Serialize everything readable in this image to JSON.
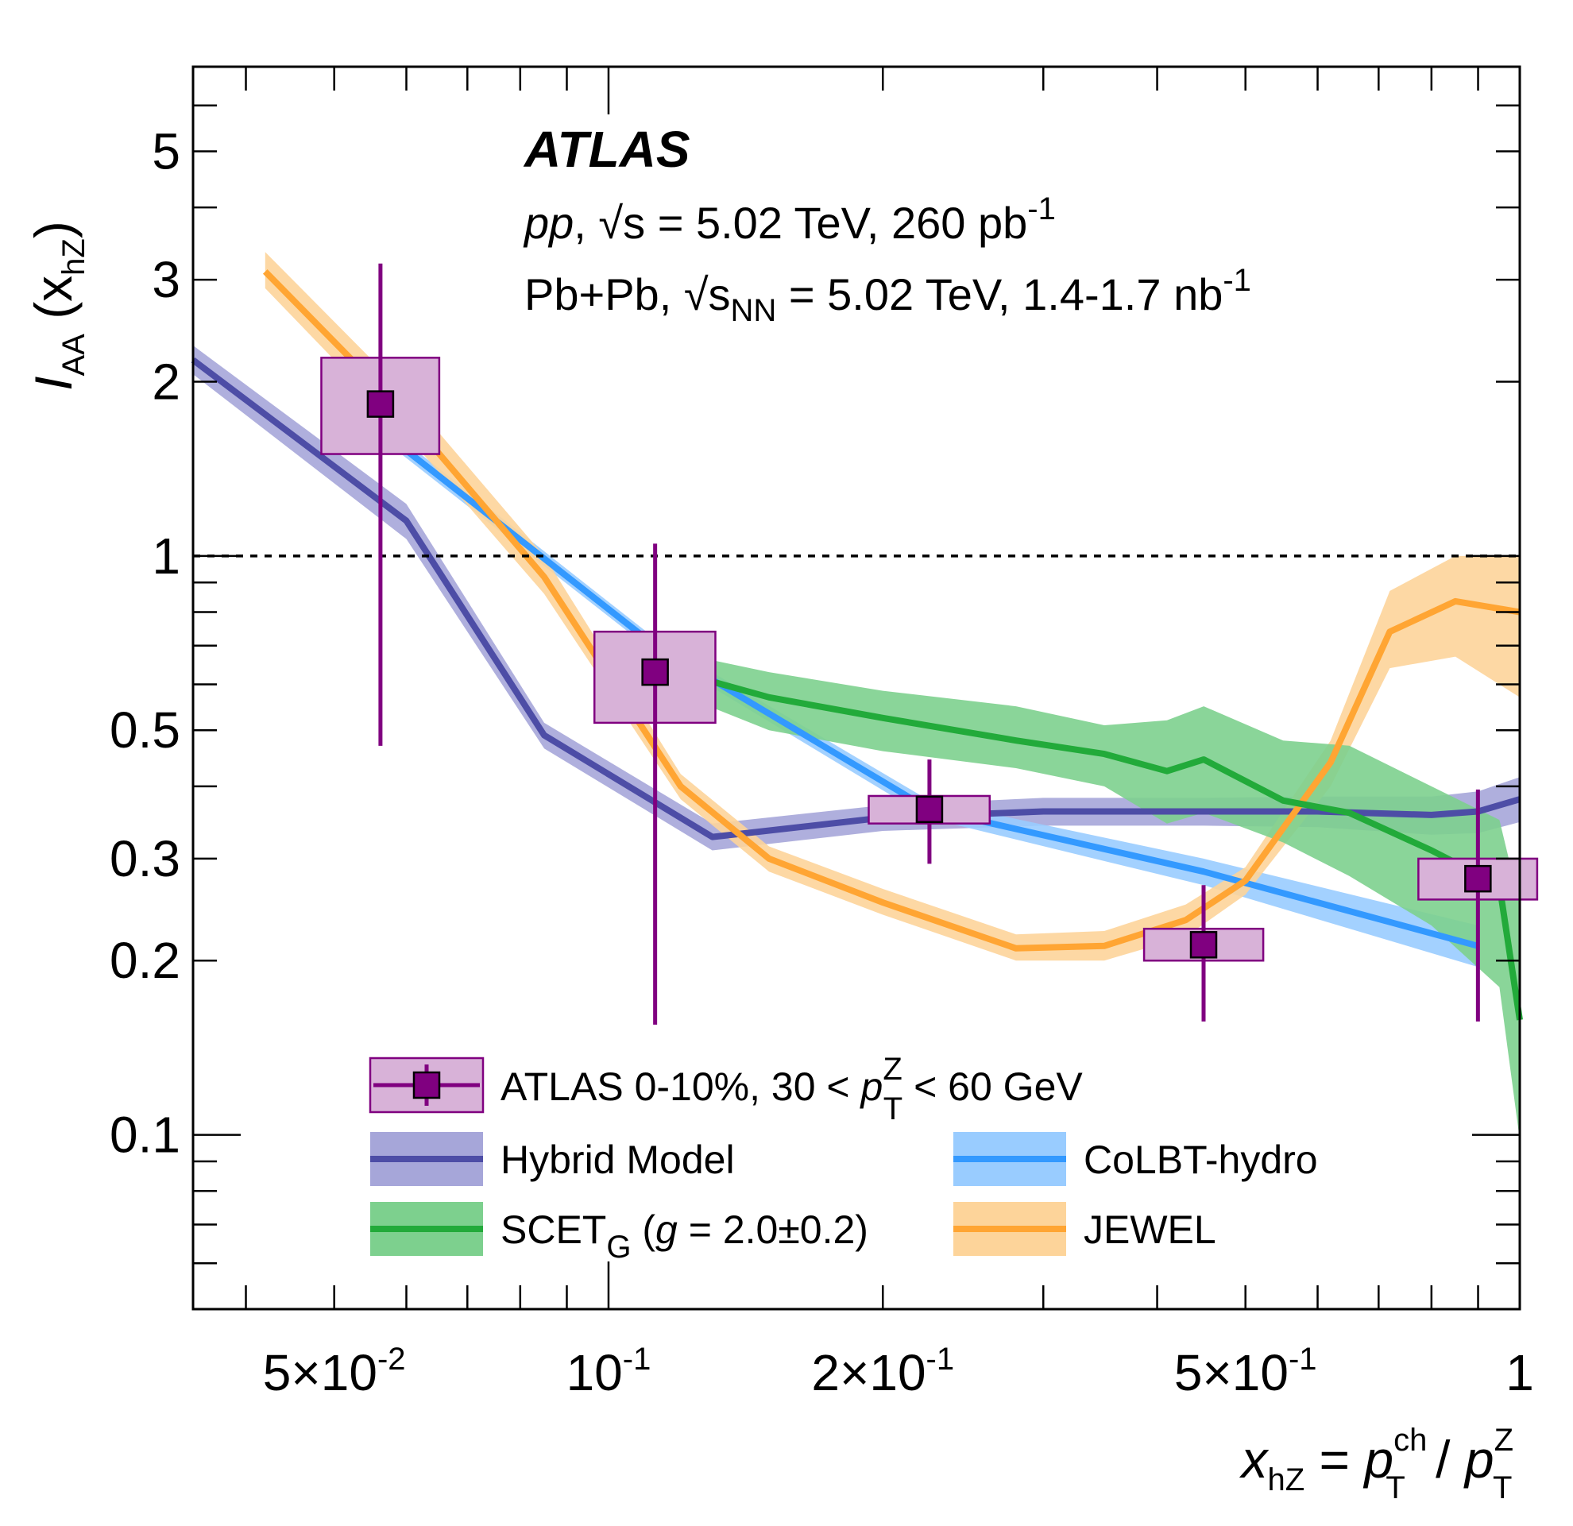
{
  "chart_data": {
    "type": "line",
    "title": "ATLAS",
    "subtitle_lines": [
      {
        "italic_prefix": "pp",
        "text": ", √s = 5.02 TeV, 260 pb",
        "superscript": "-1"
      },
      {
        "text_before": "Pb+Pb, √s",
        "subscript": "NN",
        "text_after": " = 5.02 TeV, 1.4-1.7 nb",
        "superscript": "-1"
      }
    ],
    "xlabel": {
      "parts": [
        "x",
        "hZ",
        " = ",
        "p",
        "ch",
        "T",
        " / ",
        "p",
        "Z",
        "T"
      ]
    },
    "ylabel": {
      "parts": [
        "I",
        "AA",
        " (x",
        "hZ",
        ")"
      ]
    },
    "xscale": "log",
    "yscale": "log",
    "xlim": [
      0.035,
      1.0
    ],
    "ylim": [
      0.05,
      7.0
    ],
    "x_tick_labels": [
      {
        "value": 0.05,
        "mantissa": "5×10",
        "exponent": "-2"
      },
      {
        "value": 0.1,
        "mantissa": "10",
        "exponent": "-1"
      },
      {
        "value": 0.2,
        "mantissa": "2×10",
        "exponent": "-1"
      },
      {
        "value": 0.5,
        "mantissa": "5×10",
        "exponent": "-1"
      },
      {
        "value": 1.0,
        "mantissa": "1",
        "exponent": ""
      }
    ],
    "y_tick_labels": [
      {
        "value": 5,
        "label": "5"
      },
      {
        "value": 3,
        "label": "3"
      },
      {
        "value": 2,
        "label": "2"
      },
      {
        "value": 1,
        "label": "1"
      },
      {
        "value": 0.5,
        "label": "0.5"
      },
      {
        "value": 0.3,
        "label": "0.3"
      },
      {
        "value": 0.2,
        "label": "0.2"
      },
      {
        "value": 0.1,
        "label": "0.1"
      }
    ],
    "reference_line": {
      "y": 1.0,
      "style": "dashed"
    },
    "data_points": {
      "name": "ATLAS 0-10%, 30 < p_T^Z < 60 GeV",
      "color": "#800080",
      "box_fill": "#d8b2d8",
      "points": [
        {
          "x": 0.0562,
          "y": 1.83,
          "stat_lo": 0.47,
          "stat_hi": 3.2,
          "sys_lo": 1.5,
          "sys_hi": 2.2,
          "x_lo": 0.0484,
          "x_hi": 0.0652
        },
        {
          "x": 0.1125,
          "y": 0.63,
          "stat_lo": 0.155,
          "stat_hi": 1.05,
          "sys_lo": 0.515,
          "sys_hi": 0.74,
          "x_lo": 0.0965,
          "x_hi": 0.131
        },
        {
          "x": 0.225,
          "y": 0.365,
          "stat_lo": 0.294,
          "stat_hi": 0.445,
          "sys_lo": 0.345,
          "sys_hi": 0.385,
          "x_lo": 0.193,
          "x_hi": 0.262
        },
        {
          "x": 0.4498,
          "y": 0.213,
          "stat_lo": 0.157,
          "stat_hi": 0.27,
          "sys_lo": 0.2,
          "sys_hi": 0.227,
          "x_lo": 0.387,
          "x_hi": 0.523
        },
        {
          "x": 0.8997,
          "y": 0.277,
          "stat_lo": 0.157,
          "stat_hi": 0.395,
          "sys_lo": 0.255,
          "sys_hi": 0.3,
          "x_lo": 0.774,
          "x_hi": 1.045
        }
      ]
    },
    "series": [
      {
        "name": "Hybrid Model",
        "line_color": "#4d4da6",
        "band_color": "#a6a6d9",
        "x": [
          0.035,
          0.06,
          0.085,
          0.13,
          0.2,
          0.3,
          0.45,
          0.6,
          0.8,
          0.9,
          1.0
        ],
        "y": [
          2.18,
          1.15,
          0.49,
          0.327,
          0.353,
          0.362,
          0.362,
          0.362,
          0.357,
          0.362,
          0.38
        ],
        "lo": [
          2.06,
          1.07,
          0.465,
          0.31,
          0.335,
          0.342,
          0.342,
          0.34,
          0.33,
          0.332,
          0.347
        ],
        "hi": [
          2.31,
          1.23,
          0.515,
          0.345,
          0.371,
          0.382,
          0.382,
          0.384,
          0.384,
          0.392,
          0.415
        ]
      },
      {
        "name": "CoLBT-hydro",
        "line_color": "#3399ff",
        "band_color": "#99ccff",
        "x": [
          0.0562,
          0.1125,
          0.225,
          0.4498,
          0.8997
        ],
        "y": [
          1.65,
          0.7,
          0.365,
          0.285,
          0.212
        ],
        "lo": [
          1.6,
          0.68,
          0.352,
          0.27,
          0.195
        ],
        "hi": [
          1.7,
          0.72,
          0.378,
          0.3,
          0.23
        ]
      },
      {
        "name": "SCET_G (g = 2.0±0.2)",
        "line_color": "#22aa3a",
        "band_color": "#7dd08e",
        "x": [
          0.1,
          0.15,
          0.2,
          0.28,
          0.35,
          0.41,
          0.45,
          0.55,
          0.65,
          0.8,
          0.95,
          1.06
        ],
        "y": [
          0.68,
          0.57,
          0.525,
          0.48,
          0.455,
          0.425,
          0.445,
          0.378,
          0.36,
          0.31,
          0.27,
          0.158
        ],
        "lo": [
          0.645,
          0.5,
          0.46,
          0.43,
          0.4,
          0.345,
          0.36,
          0.32,
          0.28,
          0.23,
          0.18,
          0.098
        ],
        "hi": [
          0.72,
          0.63,
          0.585,
          0.55,
          0.51,
          0.52,
          0.55,
          0.48,
          0.47,
          0.4,
          0.35,
          0.25
        ]
      },
      {
        "name": "JEWEL",
        "line_color": "#ffa533",
        "band_color": "#fdd49a",
        "x": [
          0.042,
          0.06,
          0.085,
          0.12,
          0.15,
          0.2,
          0.28,
          0.35,
          0.43,
          0.5,
          0.62,
          0.72,
          0.85,
          1.06
        ],
        "y": [
          3.1,
          1.75,
          0.92,
          0.4,
          0.3,
          0.252,
          0.21,
          0.212,
          0.235,
          0.275,
          0.44,
          0.74,
          0.835,
          0.8
        ],
        "lo": [
          2.9,
          1.62,
          0.86,
          0.38,
          0.285,
          0.24,
          0.2,
          0.2,
          0.22,
          0.26,
          0.4,
          0.64,
          0.67,
          0.57
        ],
        "hi": [
          3.35,
          1.9,
          1.0,
          0.42,
          0.315,
          0.266,
          0.222,
          0.225,
          0.25,
          0.29,
          0.48,
          0.87,
          1.0,
          1.0
        ]
      }
    ],
    "legend": {
      "placement": "bottom-left",
      "entries": [
        {
          "key": "atlas",
          "text_before": "ATLAS 0-10%, 30 < ",
          "p": "p",
          "sup": "Z",
          "sub": "T",
          "text_after": " < 60 GeV"
        },
        {
          "key": "hybrid",
          "text": "Hybrid Model"
        },
        {
          "key": "colbt",
          "text": "CoLBT-hydro"
        },
        {
          "key": "scet",
          "base": "SCET",
          "sub": "G",
          "text_open": " (",
          "g": "g",
          "text_rest": " = 2.0±0.2)"
        },
        {
          "key": "jewel",
          "text": "JEWEL"
        }
      ]
    }
  }
}
